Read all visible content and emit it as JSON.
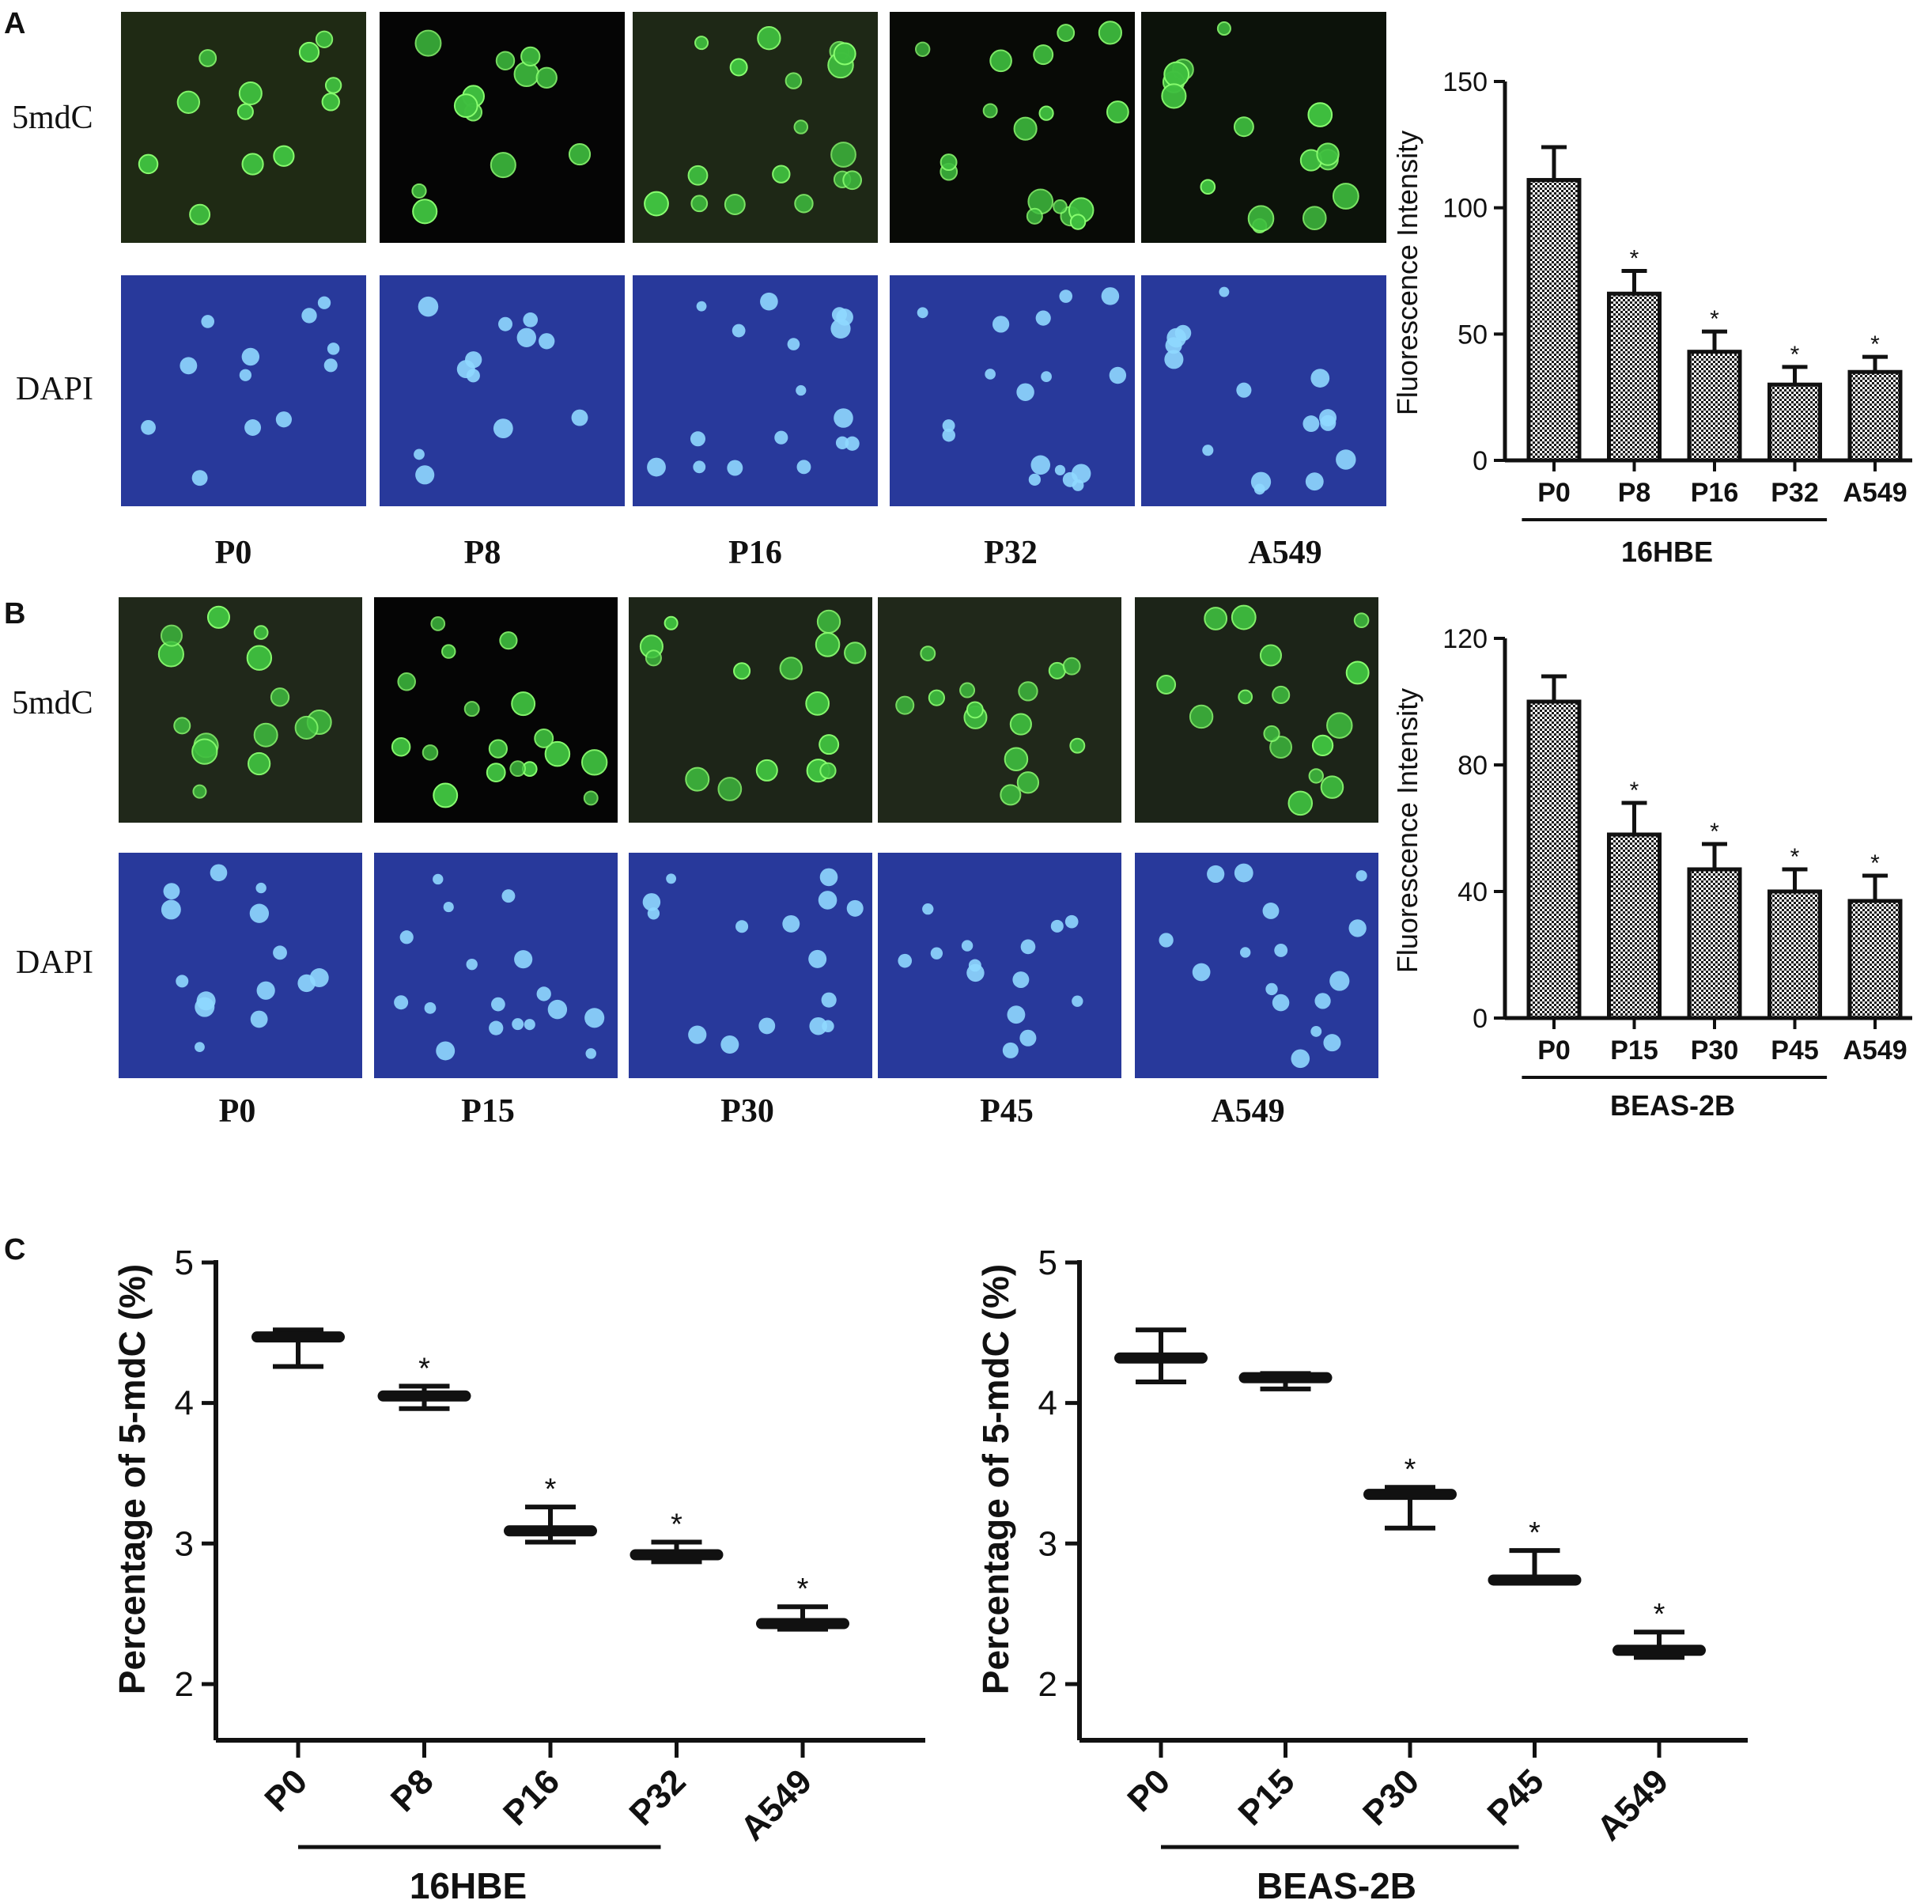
{
  "panelA": {
    "letter": "A",
    "rowLabels": [
      "5mdC",
      "DAPI"
    ],
    "columns": [
      "P0",
      "P8",
      "P16",
      "P32",
      "A549"
    ],
    "chart": {
      "type": "bar",
      "ylabel": "Fluorescence Intensity",
      "yticks": [
        0,
        50,
        100,
        150
      ],
      "ylim": [
        0,
        150
      ],
      "categories": [
        "P0",
        "P8",
        "P16",
        "P32",
        "A549"
      ],
      "values": [
        111,
        66,
        43,
        30,
        35
      ],
      "errors": [
        13,
        9,
        8,
        7,
        6
      ],
      "significant": [
        false,
        true,
        true,
        true,
        true
      ],
      "star": "*",
      "group": {
        "label": "16HBE",
        "from": 0,
        "to": 3
      }
    }
  },
  "panelB": {
    "letter": "B",
    "rowLabels": [
      "5mdC",
      "DAPI"
    ],
    "columns": [
      "P0",
      "P15",
      "P30",
      "P45",
      "A549"
    ],
    "chart": {
      "type": "bar",
      "ylabel": "Fluorescence Intensity",
      "yticks": [
        0,
        40,
        80,
        120
      ],
      "ylim": [
        0,
        120
      ],
      "categories": [
        "P0",
        "P15",
        "P30",
        "P45",
        "A549"
      ],
      "values": [
        100,
        58,
        47,
        40,
        37
      ],
      "errors": [
        8,
        10,
        8,
        7,
        8
      ],
      "significant": [
        false,
        true,
        true,
        true,
        true
      ],
      "star": "*",
      "group": {
        "label": "BEAS-2B",
        "from": 0,
        "to": 3
      }
    }
  },
  "panelC": {
    "letter": "C",
    "chart_data": [
      {
        "type": "box",
        "ylabel": "Percentage of 5-mdC (%)",
        "yticks": [
          2,
          3,
          4,
          5
        ],
        "ylim": [
          1.6,
          5
        ],
        "categories": [
          "P0",
          "P8",
          "P16",
          "P32",
          "A549"
        ],
        "median": [
          4.47,
          4.05,
          3.09,
          2.92,
          2.43
        ],
        "upper": [
          4.52,
          4.12,
          3.26,
          3.01,
          2.55
        ],
        "lower": [
          4.26,
          3.96,
          3.01,
          2.87,
          2.39
        ],
        "significant": [
          false,
          true,
          true,
          true,
          true
        ],
        "star": "*",
        "group": {
          "label": "16HBE",
          "from": 0,
          "to": 3
        }
      },
      {
        "type": "box",
        "ylabel": "Percentage of 5-mdC (%)",
        "yticks": [
          2,
          3,
          4,
          5
        ],
        "ylim": [
          1.6,
          5
        ],
        "categories": [
          "P0",
          "P15",
          "P30",
          "P45",
          "A549"
        ],
        "median": [
          4.32,
          4.18,
          3.35,
          2.74,
          2.24
        ],
        "upper": [
          4.52,
          4.21,
          3.4,
          2.95,
          2.37
        ],
        "lower": [
          4.15,
          4.1,
          3.11,
          2.73,
          2.19
        ],
        "significant": [
          false,
          false,
          true,
          true,
          true
        ],
        "star": "*",
        "group": {
          "label": "BEAS-2B",
          "from": 0,
          "to": 3
        }
      }
    ]
  }
}
